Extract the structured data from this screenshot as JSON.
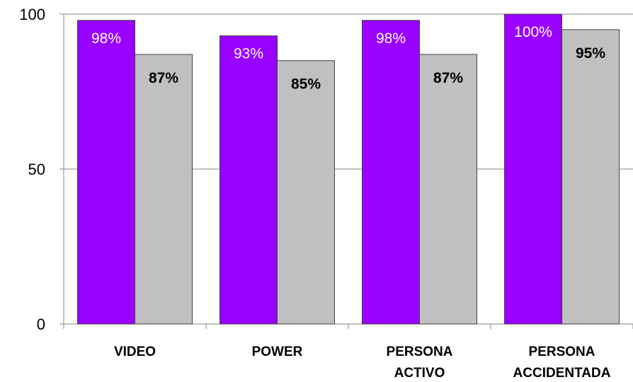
{
  "chart_data": {
    "type": "bar",
    "categories": [
      [
        "VIDEO"
      ],
      [
        "POWER"
      ],
      [
        "PERSONA",
        "ACTIVO"
      ],
      [
        "PERSONA",
        "ACCIDENTADA"
      ]
    ],
    "series": [
      {
        "values": [
          98,
          93,
          98,
          100
        ],
        "labels": [
          "98%",
          "93%",
          "98%",
          "100%"
        ],
        "color": "#9900FF",
        "label_color": "#FFFFFF",
        "label_bold": false
      },
      {
        "values": [
          87,
          85,
          87,
          95
        ],
        "labels": [
          "87%",
          "85%",
          "87%",
          "95%"
        ],
        "color": "#C0C0C0",
        "label_color": "#000000",
        "label_bold": true
      }
    ],
    "ylim": [
      0,
      100
    ],
    "yticks": [
      "0",
      "50",
      "100"
    ],
    "grid": true,
    "title": "",
    "xlabel": "",
    "ylabel": ""
  }
}
